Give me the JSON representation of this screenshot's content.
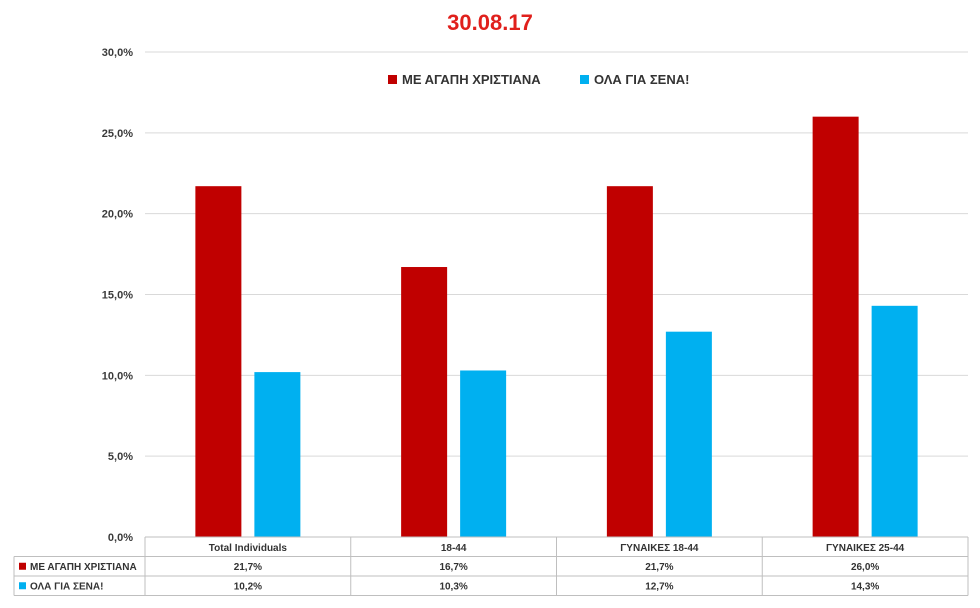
{
  "colors": {
    "series1": "#c00000",
    "series2": "#00b0f0",
    "title": "#e0201c",
    "grid": "#d9d9d9"
  },
  "chart_data": {
    "type": "bar",
    "title": "30.08.17",
    "categories": [
      "Total Individuals",
      "18-44",
      "ΓΥΝΑΙΚΕΣ 18-44",
      "ΓΥΝΑΙΚΕΣ 25-44"
    ],
    "series": [
      {
        "name": "ΜΕ ΑΓΑΠΗ ΧΡΙΣΤΙΑΝΑ",
        "values": [
          21.7,
          16.7,
          21.7,
          26.0
        ],
        "labels": [
          "21,7%",
          "16,7%",
          "21,7%",
          "26,0%"
        ]
      },
      {
        "name": "ΟΛΑ ΓΙΑ ΣΕΝΑ!",
        "values": [
          10.2,
          10.3,
          12.7,
          14.3
        ],
        "labels": [
          "10,2%",
          "10,3%",
          "12,7%",
          "14,3%"
        ]
      }
    ],
    "ylim": [
      0,
      30
    ],
    "yticks": [
      "0,0%",
      "5,0%",
      "10,0%",
      "15,0%",
      "20,0%",
      "25,0%",
      "30,0%"
    ],
    "grid": true,
    "legend": "top",
    "data_table": true
  }
}
